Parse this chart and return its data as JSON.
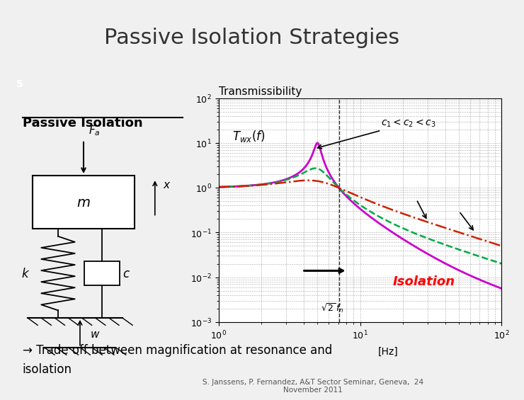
{
  "title": "Passive Isolation Strategies",
  "slide_number": "5",
  "left_heading": "Passive Isolation",
  "plot_title": "Transmissibility",
  "plot_xlabel": "[Hz]",
  "plot_formula": "$T_{wx}(f)$",
  "plot_annotation": "$c_1 < c_2 < c_3$",
  "isolation_label": "Isolation",
  "arrow_text_line1": "→ Trade off between magnification at resonance and",
  "arrow_text_line2": "isolation",
  "footer": "S. Janssens, P. Fernandez, A&T Sector Seminar, Geneva,  24\nNovember 2011",
  "bg_color": "#f0f0f0",
  "header_bg": "#ffffff",
  "bar_bg": "#b0b8c8",
  "body_bg": "#dde3ea",
  "fn": 5.0,
  "zeta_values": [
    0.05,
    0.2,
    0.5
  ],
  "line_colors": [
    "#cc00cc",
    "#00aa44",
    "#cc2200"
  ],
  "line_styles": [
    "-",
    "--",
    "-."
  ],
  "freq_min": 1.0,
  "freq_max": 100.0,
  "y_min": 0.001,
  "y_max": 100.0
}
